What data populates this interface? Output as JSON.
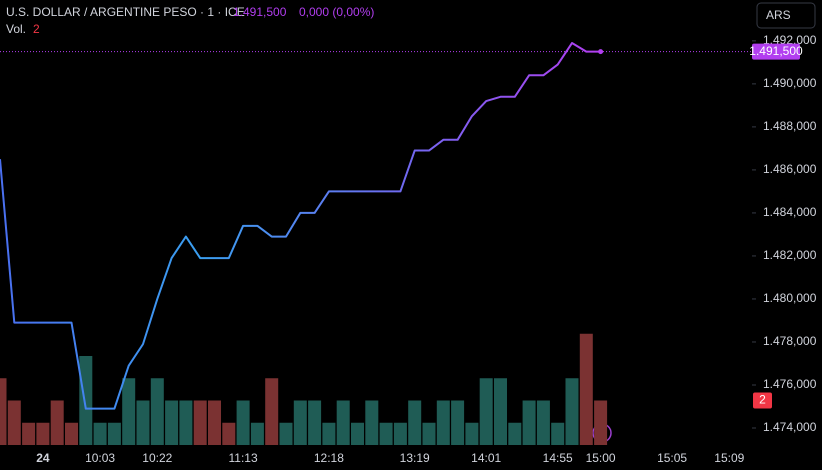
{
  "chart_data": {
    "type": "line",
    "title": "U.S. DOLLAR / ARGENTINE PESO · 1 · ICE",
    "last_label": "1.491,500",
    "change_label": "0,000 (0,00%)",
    "volume_label": "Vol.",
    "currency": "ARS",
    "categories": [
      null,
      null,
      null,
      "24",
      null,
      null,
      null,
      "10:03",
      null,
      null,
      null,
      "10:22",
      null,
      null,
      null,
      null,
      null,
      "11:13",
      null,
      null,
      null,
      null,
      null,
      "12:18",
      null,
      null,
      null,
      null,
      null,
      "13:19",
      null,
      null,
      null,
      null,
      "14:01",
      null,
      null,
      null,
      null,
      "14:55",
      null,
      null,
      "15:00",
      null,
      null,
      null,
      null,
      "15:05",
      null,
      null,
      null,
      "15:09"
    ],
    "series": [
      {
        "type": "line",
        "colors": [
          "#4a6ff0",
          "#3a9ff0",
          "#6f6af0",
          "#b23ef0"
        ],
        "values": [
          1486.5,
          1478.9,
          1478.9,
          1478.9,
          1478.9,
          1478.9,
          1474.9,
          1474.9,
          1474.9,
          1476.9,
          1477.9,
          1480.0,
          1481.9,
          1482.9,
          1481.9,
          1481.9,
          1481.9,
          1483.4,
          1483.4,
          1482.9,
          1482.9,
          1484.0,
          1484.0,
          1485.0,
          1485.0,
          1485.0,
          1485.0,
          1485.0,
          1485.0,
          1486.9,
          1486.9,
          1487.4,
          1487.4,
          1488.5,
          1489.2,
          1489.4,
          1489.4,
          1490.4,
          1490.4,
          1490.9,
          1491.9,
          1491.5,
          1491.5,
          null,
          null,
          null,
          null,
          null,
          null,
          null,
          null,
          null
        ]
      },
      {
        "type": "bar",
        "axis": "y2",
        "values": [
          3,
          2,
          1,
          1,
          2,
          1,
          4,
          1,
          1,
          3,
          2,
          3,
          2,
          2,
          2,
          2,
          1,
          2,
          1,
          3,
          1,
          2,
          2,
          1,
          2,
          1,
          2,
          1,
          1,
          2,
          1,
          2,
          2,
          1,
          3,
          3,
          1,
          2,
          2,
          1,
          3,
          5,
          2,
          null,
          null,
          null,
          null,
          null,
          null,
          null,
          null,
          null
        ],
        "colors": [
          "#7b3232",
          "#7b3232",
          "#7b3232",
          "#7b3232",
          "#7b3232",
          "#7b3232",
          "#1f5c55",
          "#1f5c55",
          "#1f5c55",
          "#1f5c55",
          "#1f5c55",
          "#1f5c55",
          "#1f5c55",
          "#1f5c55",
          "#7b3232",
          "#7b3232",
          "#7b3232",
          "#1f5c55",
          "#1f5c55",
          "#7b3232",
          "#1f5c55",
          "#1f5c55",
          "#1f5c55",
          "#1f5c55",
          "#1f5c55",
          "#1f5c55",
          "#1f5c55",
          "#1f5c55",
          "#1f5c55",
          "#1f5c55",
          "#1f5c55",
          "#1f5c55",
          "#1f5c55",
          "#1f5c55",
          "#1f5c55",
          "#1f5c55",
          "#1f5c55",
          "#1f5c55",
          "#1f5c55",
          "#1f5c55",
          "#1f5c55",
          "#7b3232",
          "#7b3232",
          null,
          null,
          null,
          null,
          null,
          null,
          null,
          null,
          null
        ]
      }
    ],
    "ylim": [
      1473.21,
      1493.9
    ],
    "yticks": [
      {
        "value": 1474,
        "label": "1.474,000"
      },
      {
        "value": 1476,
        "label": "1.476,000"
      },
      {
        "value": 1478,
        "label": "1.478,000"
      },
      {
        "value": 1480,
        "label": "1.480,000"
      },
      {
        "value": 1482,
        "label": "1.482,000"
      },
      {
        "value": 1484,
        "label": "1.484,000"
      },
      {
        "value": 1486,
        "label": "1.486,000"
      },
      {
        "value": 1488,
        "label": "1.488,000"
      },
      {
        "value": 1490,
        "label": "1.490,000"
      },
      {
        "value": 1492,
        "label": "1.492,000"
      }
    ],
    "y2lim": [
      0,
      20
    ],
    "last_color": "#b23ef0",
    "volume_tag_color": "#f23645"
  }
}
